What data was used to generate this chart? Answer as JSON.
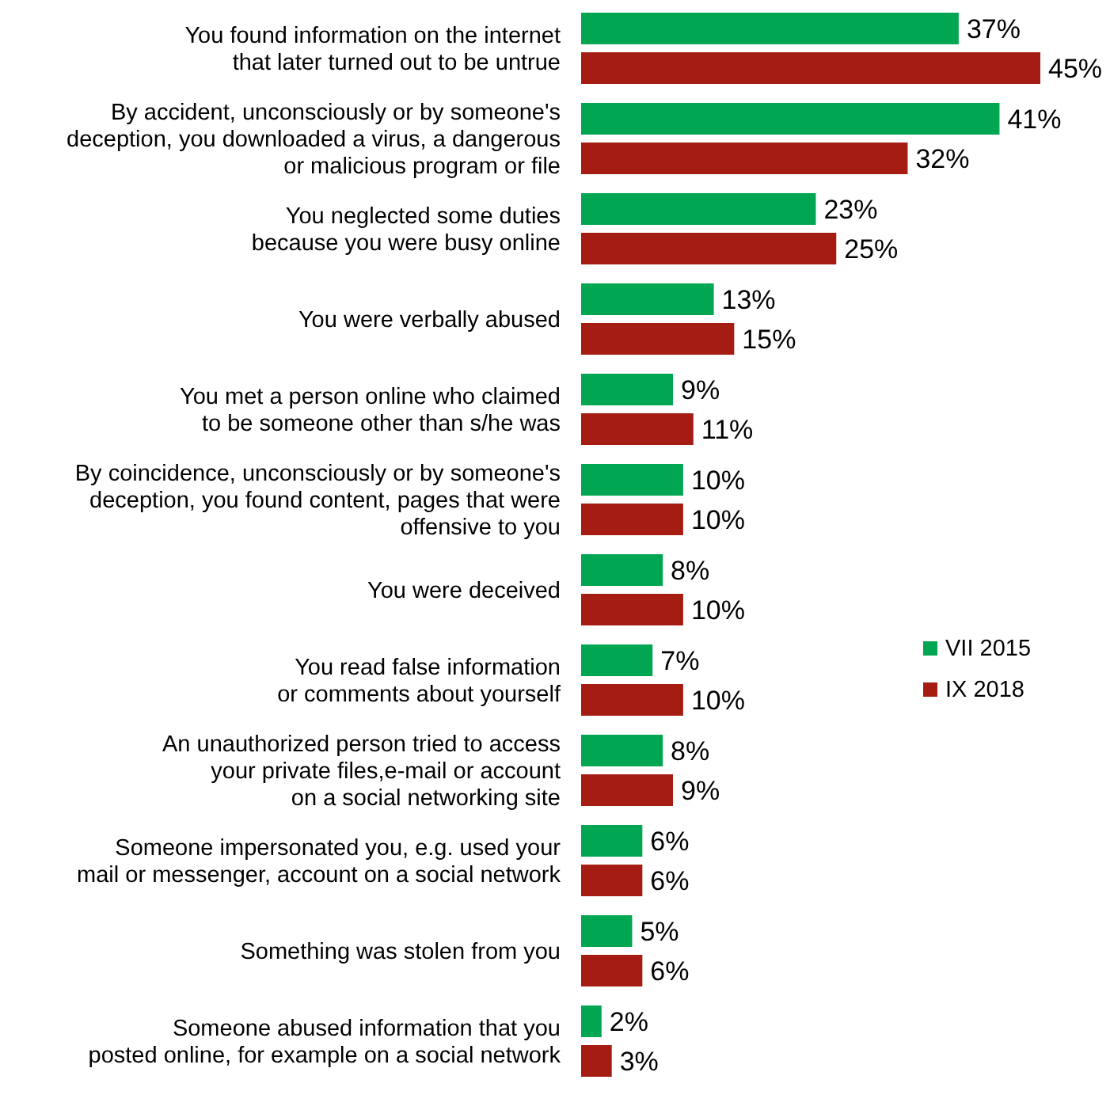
{
  "chart_data": {
    "type": "bar",
    "orientation": "horizontal",
    "legend": "right",
    "categories": [
      "You found information on the internet\nthat later turned out to be untrue",
      "By accident, unconsciously or by someone's\ndeception, you downloaded a virus, a dangerous\nor malicious program or file",
      "You neglected some duties\nbecause you were busy online",
      "You were verbally abused",
      "You met a person online who claimed\nto be someone other than s/he was",
      "By coincidence, unconsciously or by someone's\ndeception, you found content, pages that were\noffensive to you",
      "You were deceived",
      "You read false information\nor comments about yourself",
      "An unauthorized person tried to access\nyour private files,e-mail or account\non a social networking site",
      "Someone impersonated you, e.g. used your\nmail or messenger, account on a social network",
      "Something was stolen from you",
      "Someone abused information that you\nposted online, for example on a social network"
    ],
    "series": [
      {
        "name": "VII 2015",
        "color": "#00a651",
        "values": [
          37,
          41,
          23,
          13,
          9,
          10,
          8,
          7,
          8,
          6,
          5,
          2
        ],
        "value_labels": [
          "37%",
          "41%",
          "23%",
          "13%",
          "9%",
          "10%",
          "8%",
          "7%",
          "8%",
          "6%",
          "5%",
          "2%"
        ]
      },
      {
        "name": "IX 2018",
        "color": "#a51c12",
        "values": [
          45,
          32,
          25,
          15,
          11,
          10,
          10,
          10,
          9,
          6,
          6,
          3
        ],
        "value_labels": [
          "45%",
          "32%",
          "25%",
          "15%",
          "11%",
          "10%",
          "10%",
          "10%",
          "9%",
          "6%",
          "6%",
          "3%"
        ]
      }
    ]
  }
}
